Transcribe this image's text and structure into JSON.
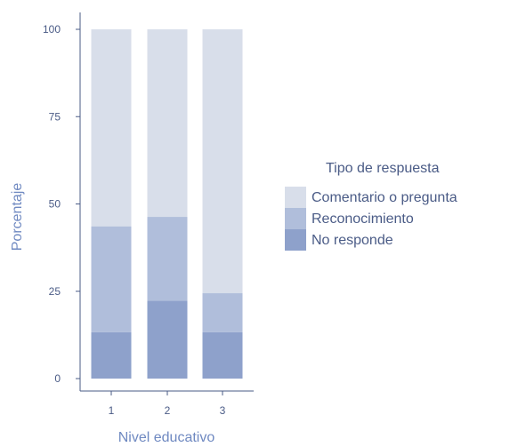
{
  "chart_data": {
    "type": "bar",
    "stacked": true,
    "categories": [
      "1",
      "2",
      "3"
    ],
    "series": [
      {
        "name": "No responde",
        "color": "#8ea1cb",
        "values": [
          13.3,
          22.3,
          13.3
        ]
      },
      {
        "name": "Reconocimiento",
        "color": "#b0bedb",
        "values": [
          30.3,
          24.0,
          11.2
        ]
      },
      {
        "name": "Comentario o pregunta",
        "color": "#d8deea",
        "values": [
          56.4,
          53.7,
          75.5
        ]
      }
    ],
    "xlabel": "Nivel educativo",
    "ylabel": "Porcentaje",
    "ylim": [
      0,
      100
    ],
    "yticks": [
      0,
      25,
      50,
      75,
      100
    ],
    "legend": {
      "title": "Tipo de respuesta",
      "position": "right",
      "items": [
        "Comentario o pregunta",
        "Reconocimiento",
        "No responde"
      ]
    },
    "grid": false
  },
  "colors": {
    "axis": "#4a5b86",
    "axis_title": "#6f89c1"
  }
}
